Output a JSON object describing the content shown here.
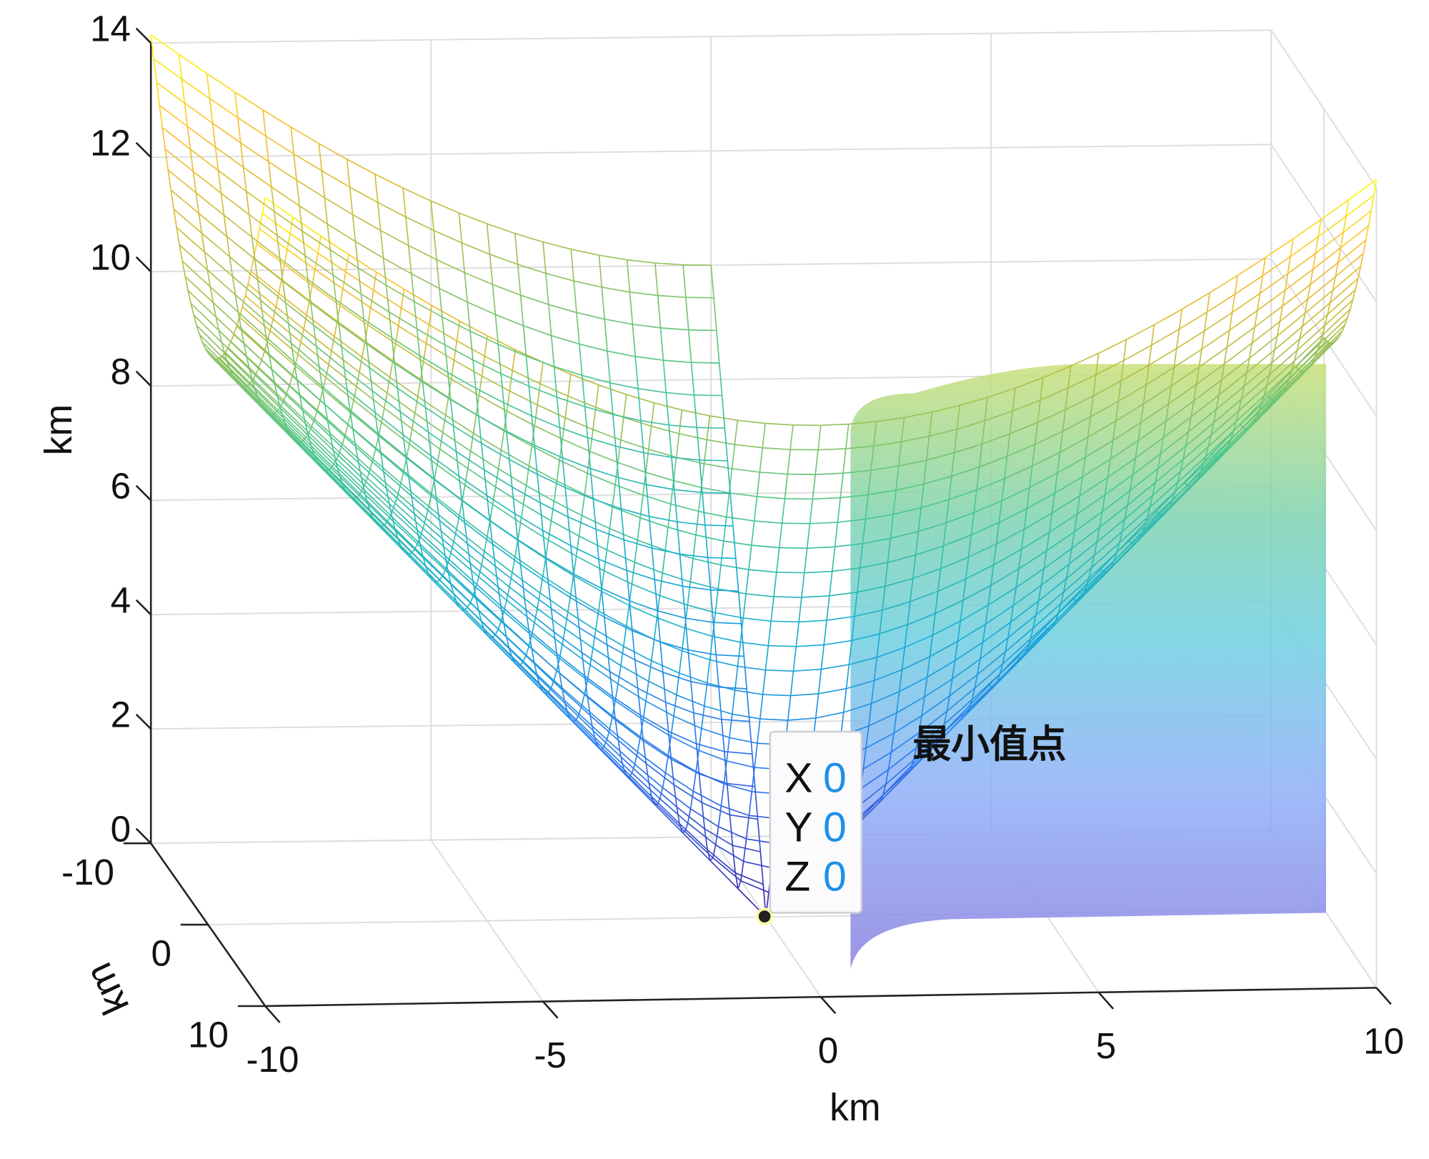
{
  "chart_data": {
    "type": "surface",
    "surface_function": "z = sqrt(x^2 + y^2)",
    "mesh_resolution": 41,
    "xlabel": "km",
    "ylabel": "km",
    "zlabel": "km",
    "xlim": [
      -10,
      10
    ],
    "ylim": [
      -10,
      10
    ],
    "zlim": [
      0,
      14
    ],
    "xticks": [
      "-10",
      "-5",
      "0",
      "5",
      "10"
    ],
    "xtick_values": [
      -10,
      -5,
      0,
      5,
      10
    ],
    "yticks": [
      "-10",
      "0",
      "10"
    ],
    "ytick_values": [
      -10,
      0,
      10
    ],
    "zticks": [
      "0",
      "2",
      "4",
      "6",
      "8",
      "10",
      "12",
      "14"
    ],
    "ztick_values": [
      0,
      2,
      4,
      6,
      8,
      10,
      12,
      14
    ],
    "grid": true,
    "colormap": "parula",
    "datatip": {
      "x_label": "X",
      "x_value": "0",
      "y_label": "Y",
      "y_value": "0",
      "z_label": "Z",
      "z_value": "0"
    },
    "annotation": "最小值点",
    "colors": {
      "tip_value": "#1e90e8",
      "axis": "#222222",
      "grid": "#dddddd"
    }
  }
}
